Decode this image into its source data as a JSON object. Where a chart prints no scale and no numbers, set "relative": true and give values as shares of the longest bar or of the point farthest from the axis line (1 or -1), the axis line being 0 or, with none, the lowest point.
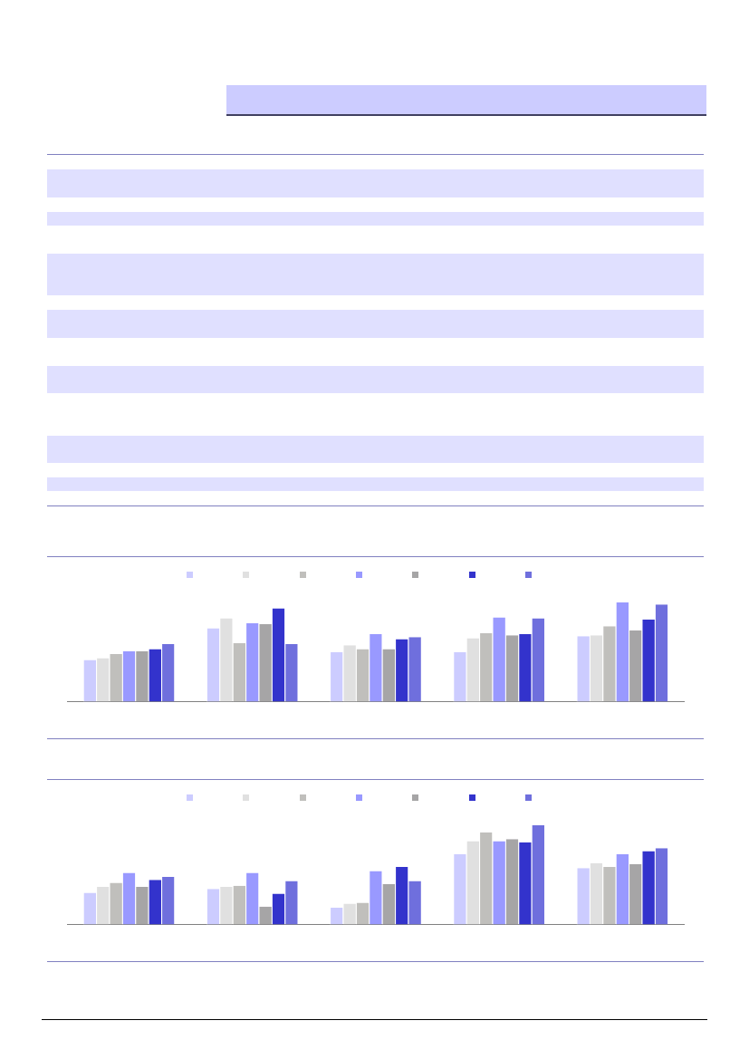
{
  "chart_data": [
    {
      "type": "bar",
      "relative": true,
      "categories": [
        null,
        null,
        null,
        null,
        null
      ],
      "grid": false,
      "series": [
        {
          "color": "#ccccff",
          "values": [
            0.42,
            0.74,
            0.5,
            0.5,
            0.66
          ]
        },
        {
          "color": "#e0e0e0",
          "values": [
            0.44,
            0.84,
            0.57,
            0.64,
            0.67
          ]
        },
        {
          "color": "#c0bfbc",
          "values": [
            0.48,
            0.59,
            0.53,
            0.69,
            0.76
          ]
        },
        {
          "color": "#9999ff",
          "values": [
            0.51,
            0.79,
            0.68,
            0.85,
            1
          ]
        },
        {
          "color": "#a6a5a6",
          "values": [
            0.51,
            0.78,
            0.53,
            0.67,
            0.72
          ]
        },
        {
          "color": "#3333cc",
          "values": [
            0.53,
            0.94,
            0.63,
            0.68,
            0.83
          ]
        },
        {
          "color": "#6f6fdd",
          "values": [
            0.58,
            0.58,
            0.65,
            0.84,
            0.98
          ]
        }
      ]
    },
    {
      "type": "bar",
      "relative": true,
      "categories": [
        null,
        null,
        null,
        null,
        null
      ],
      "grid": false,
      "series": [
        {
          "color": "#ccccff",
          "values": [
            0.32,
            0.36,
            0.17,
            0.71,
            0.57
          ]
        },
        {
          "color": "#e0e0e0",
          "values": [
            0.38,
            0.38,
            0.21,
            0.84,
            0.62
          ]
        },
        {
          "color": "#c0bfbc",
          "values": [
            0.42,
            0.39,
            0.22,
            0.93,
            0.58
          ]
        },
        {
          "color": "#9999ff",
          "values": [
            0.52,
            0.52,
            0.54,
            0.84,
            0.71
          ]
        },
        {
          "color": "#a6a5a6",
          "values": [
            0.38,
            0.18,
            0.41,
            0.86,
            0.61
          ]
        },
        {
          "color": "#3333cc",
          "values": [
            0.45,
            0.31,
            0.58,
            0.83,
            0.74
          ]
        },
        {
          "color": "#6f6fdd",
          "values": [
            0.48,
            0.44,
            0.44,
            1,
            0.77
          ]
        }
      ]
    }
  ]
}
